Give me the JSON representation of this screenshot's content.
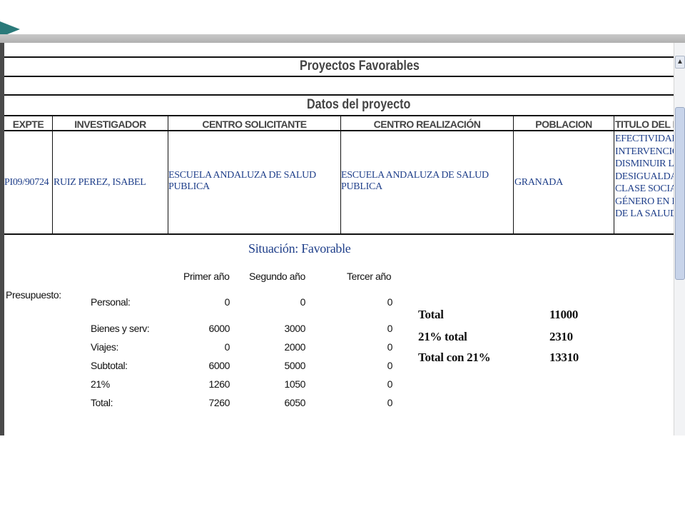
{
  "title": "Proyectos Favorables",
  "subtitle": "Datos del  proyecto",
  "columns": [
    "EXPTE",
    "INVESTIGADOR",
    "CENTRO SOLICITANTE",
    "CENTRO REALIZACIÓN",
    "POBLACION",
    "TITULO DEL P"
  ],
  "row": {
    "expte": "PI09/90724",
    "investigador": "RUIZ PEREZ, ISABEL",
    "centro_solicitante": [
      "ESCUELA ANDALUZA DE SALUD",
      "PUBLICA"
    ],
    "centro_realizacion": [
      "ESCUELA ANDALUZA DE SALUD",
      "PUBLICA"
    ],
    "poblacion": "GRANADA",
    "titulo": [
      "EFECTIVIDAD",
      "INTERVENCIO",
      "DISMINUIR LA",
      "DESIGUALDAI",
      "CLASE SOCIAI",
      "GÉNERO EN EI",
      "DE LA SALUD"
    ]
  },
  "situacion": "Situación: Favorable",
  "presupuesto": {
    "label": "Presupuesto:",
    "years": [
      "Primer año",
      "Segundo año",
      "Tercer año"
    ],
    "rows": [
      {
        "label": "Personal:",
        "values": [
          "0",
          "0",
          "0"
        ]
      },
      {
        "label": "Bienes y serv:",
        "values": [
          "6000",
          "3000",
          "0"
        ]
      },
      {
        "label": "Viajes:",
        "values": [
          "0",
          "2000",
          "0"
        ]
      },
      {
        "label": "Subtotal:",
        "values": [
          "6000",
          "5000",
          "0"
        ]
      },
      {
        "label": "21%",
        "values": [
          "1260",
          "1050",
          "0"
        ]
      },
      {
        "label": "Total:",
        "values": [
          "7260",
          "6050",
          "0"
        ]
      }
    ]
  },
  "totals": [
    {
      "label": "Total",
      "value": "11000"
    },
    {
      "label": "21% total",
      "value": "2310"
    },
    {
      "label": "Total con 21%",
      "value": "13310"
    }
  ]
}
